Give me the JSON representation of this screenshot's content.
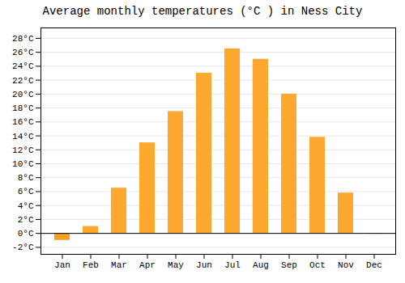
{
  "chart_data": {
    "type": "bar",
    "title": "Average monthly temperatures (°C ) in Ness City",
    "categories": [
      "Jan",
      "Feb",
      "Mar",
      "Apr",
      "May",
      "Jun",
      "Jul",
      "Aug",
      "Sep",
      "Oct",
      "Nov",
      "Dec"
    ],
    "values": [
      -1.0,
      1.0,
      6.5,
      13.0,
      17.5,
      23.0,
      26.5,
      25.0,
      20.0,
      13.8,
      5.8,
      -0.1
    ],
    "colors": [
      "#F5A020",
      "#FFA830",
      "#FFA830",
      "#FFA830",
      "#FFA830",
      "#FFA830",
      "#FFA830",
      "#FFA830",
      "#FFA830",
      "#FFA830",
      "#FFA830",
      "#F5A020"
    ],
    "ylim": [
      -3,
      29.5
    ],
    "yticks": [
      {
        "value": -2,
        "label": "-2°C"
      },
      {
        "value": 0,
        "label": "0°C"
      },
      {
        "value": 2,
        "label": "2°C"
      },
      {
        "value": 4,
        "label": "4°C"
      },
      {
        "value": 6,
        "label": "6°C"
      },
      {
        "value": 8,
        "label": "8°C"
      },
      {
        "value": 10,
        "label": "10°C"
      },
      {
        "value": 12,
        "label": "12°C"
      },
      {
        "value": 14,
        "label": "14°C"
      },
      {
        "value": 16,
        "label": "16°C"
      },
      {
        "value": 18,
        "label": "18°C"
      },
      {
        "value": 20,
        "label": "20°C"
      },
      {
        "value": 22,
        "label": "22°C"
      },
      {
        "value": 24,
        "label": "24°C"
      },
      {
        "value": 26,
        "label": "26°C"
      },
      {
        "value": 28,
        "label": "28°C"
      }
    ],
    "grid": true
  }
}
